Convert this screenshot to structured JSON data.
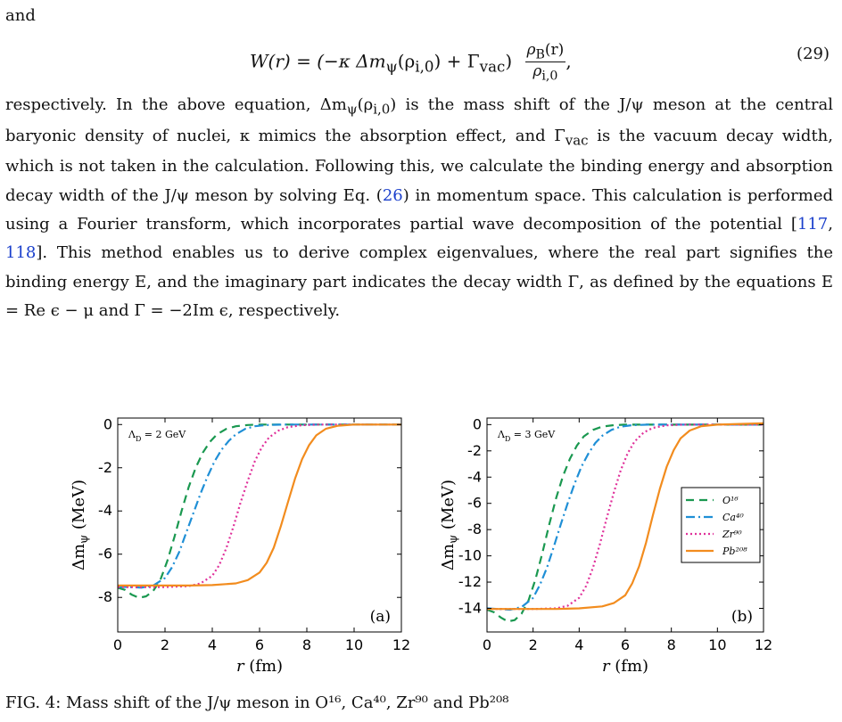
{
  "intro_word": "and",
  "equation": {
    "lhs": "W(r) = (−κ Δm",
    "lhs_sub": "ψ",
    "mid": "(ρ",
    "mid_sub": "i,0",
    "rest": ") + Γ",
    "rest_sub": "vac",
    "close": ")",
    "frac_num": "ρ",
    "frac_num_sub": "B",
    "frac_num_tail": "(r)",
    "frac_den": "ρ",
    "frac_den_sub": "i,0",
    "tail": ",",
    "number": "(29)"
  },
  "paragraph": {
    "s1": "respectively. In the above equation, Δm",
    "s1_sub": "ψ",
    "s2": "(ρ",
    "s2_sub": "i,0",
    "s3": ") is the mass shift of the J/ψ meson at the central baryonic density of nuclei, κ mimics the absorption effect, and Γ",
    "s3_sub": "vac",
    "s4": " is the vacuum decay width, which is not taken in the calculation. Following this, we calculate the binding energy and absorption decay width of the J/ψ meson by solving Eq. (",
    "ref_eq": "26",
    "s5": ") in momentum space. This calculation is performed using a Fourier transform, which incorporates partial wave decomposition of the potential [",
    "ref_a": "117",
    "s6": ", ",
    "ref_b": "118",
    "s7": "]. This method enables us to derive complex eigenvalues, where the real part signifies the binding energy E, and the imaginary part indicates the decay width Γ, as defined by the equations E = Re ϵ − μ and Γ = −2Im ϵ, respectively."
  },
  "caption_partial": "FIG. 4: Mass shift of the J/ψ meson in O¹⁶, Ca⁴⁰, Zr⁹⁰ and Pb²⁰⁸",
  "chart_data": [
    {
      "type": "line",
      "panel_label": "(a)",
      "annotation": "Λ_D = 2 GeV",
      "xlabel": "r (fm)",
      "ylabel": "Δm_ψ (MeV)",
      "xlim": [
        0,
        12
      ],
      "ylim": [
        -9.6,
        0.3
      ],
      "xticks": [
        0,
        2,
        4,
        6,
        8,
        10,
        12
      ],
      "yticks": [
        0,
        -2,
        -4,
        -6,
        -8
      ],
      "ytick_labels": [
        "0",
        "-2",
        "-4",
        "-6",
        "-8"
      ],
      "grid": false,
      "legend": "none",
      "series": [
        {
          "name": "O¹⁶",
          "color": "#1a9850",
          "dash": "9,6",
          "x": [
            0,
            0.3,
            0.6,
            0.9,
            1.2,
            1.5,
            1.8,
            2.1,
            2.4,
            2.7,
            3.0,
            3.3,
            3.6,
            3.9,
            4.2,
            4.6,
            5.0,
            5.5,
            6.0,
            7.0,
            8.0,
            10.0,
            12.0
          ],
          "y": [
            -7.55,
            -7.65,
            -7.88,
            -8.02,
            -7.95,
            -7.7,
            -7.2,
            -6.3,
            -5.2,
            -4.0,
            -2.9,
            -2.0,
            -1.3,
            -0.8,
            -0.45,
            -0.2,
            -0.08,
            -0.02,
            0.0,
            0.0,
            0.0,
            0.0,
            0.0
          ]
        },
        {
          "name": "Ca⁴⁰",
          "color": "#1f8fd6",
          "dash": "10,4,2,4",
          "x": [
            0,
            0.5,
            1.0,
            1.5,
            2.0,
            2.3,
            2.6,
            2.9,
            3.2,
            3.5,
            3.8,
            4.1,
            4.4,
            4.7,
            5.0,
            5.4,
            5.8,
            6.3,
            7.0,
            8.0,
            10.0,
            12.0
          ],
          "y": [
            -7.5,
            -7.52,
            -7.55,
            -7.45,
            -7.1,
            -6.6,
            -5.9,
            -5.0,
            -4.1,
            -3.2,
            -2.4,
            -1.7,
            -1.15,
            -0.75,
            -0.45,
            -0.2,
            -0.08,
            -0.02,
            0.0,
            0.0,
            0.0,
            0.0
          ]
        },
        {
          "name": "Zr⁹⁰",
          "color": "#e0309a",
          "dash": "2,3",
          "x": [
            0,
            1.0,
            2.0,
            3.0,
            3.5,
            4.0,
            4.3,
            4.6,
            4.9,
            5.2,
            5.5,
            5.8,
            6.1,
            6.4,
            6.8,
            7.2,
            7.8,
            8.5,
            10.0,
            12.0
          ],
          "y": [
            -7.52,
            -7.52,
            -7.52,
            -7.48,
            -7.35,
            -7.0,
            -6.5,
            -5.7,
            -4.7,
            -3.6,
            -2.6,
            -1.7,
            -1.05,
            -0.6,
            -0.28,
            -0.12,
            -0.03,
            0.0,
            0.0,
            0.0
          ]
        },
        {
          "name": "Pb²⁰⁸",
          "color": "#f28c1e",
          "dash": "",
          "x": [
            0,
            1.0,
            2.0,
            3.0,
            4.0,
            5.0,
            5.5,
            6.0,
            6.3,
            6.6,
            6.9,
            7.2,
            7.5,
            7.8,
            8.1,
            8.4,
            8.8,
            9.3,
            10.0,
            11.0,
            12.0
          ],
          "y": [
            -7.45,
            -7.45,
            -7.45,
            -7.45,
            -7.43,
            -7.35,
            -7.2,
            -6.85,
            -6.4,
            -5.7,
            -4.7,
            -3.6,
            -2.5,
            -1.6,
            -0.95,
            -0.5,
            -0.2,
            -0.06,
            0.0,
            0.0,
            0.0
          ]
        }
      ]
    },
    {
      "type": "line",
      "panel_label": "(b)",
      "annotation": "Λ_D = 3 GeV",
      "xlabel": "r (fm)",
      "ylabel": "Δm_ψ (MeV)",
      "xlim": [
        0,
        12
      ],
      "ylim": [
        -15.8,
        0.5
      ],
      "xticks": [
        0,
        2,
        4,
        6,
        8,
        10,
        12
      ],
      "yticks": [
        0,
        -2,
        -4,
        -6,
        -8,
        -10,
        -12,
        -14
      ],
      "ytick_labels": [
        "0",
        "-2",
        "-4",
        "-6",
        "-8",
        "-10",
        "-12",
        "-14"
      ],
      "grid": false,
      "legend": "right",
      "series": [
        {
          "name": "O¹⁶",
          "color": "#1a9850",
          "dash": "9,6",
          "x": [
            0,
            0.3,
            0.6,
            0.9,
            1.2,
            1.5,
            1.8,
            2.1,
            2.4,
            2.7,
            3.0,
            3.3,
            3.6,
            3.9,
            4.2,
            4.6,
            5.0,
            5.5,
            6.0,
            7.0,
            8.0,
            10.0,
            12.0
          ],
          "y": [
            -14.1,
            -14.3,
            -14.7,
            -15.0,
            -14.9,
            -14.4,
            -13.4,
            -11.8,
            -9.8,
            -7.6,
            -5.6,
            -3.9,
            -2.6,
            -1.6,
            -0.9,
            -0.4,
            -0.15,
            -0.04,
            0.0,
            0.0,
            0.0,
            0.0,
            0.0
          ]
        },
        {
          "name": "Ca⁴⁰",
          "color": "#1f8fd6",
          "dash": "10,4,2,4",
          "x": [
            0,
            0.5,
            1.0,
            1.5,
            2.0,
            2.3,
            2.6,
            2.9,
            3.2,
            3.5,
            3.8,
            4.1,
            4.4,
            4.7,
            5.0,
            5.4,
            5.8,
            6.3,
            7.0,
            8.0,
            10.0,
            12.0
          ],
          "y": [
            -14.0,
            -14.05,
            -14.1,
            -13.9,
            -13.2,
            -12.2,
            -10.9,
            -9.3,
            -7.6,
            -6.0,
            -4.5,
            -3.2,
            -2.2,
            -1.4,
            -0.85,
            -0.4,
            -0.15,
            -0.04,
            0.0,
            0.0,
            0.0,
            0.0
          ]
        },
        {
          "name": "Zr⁹⁰",
          "color": "#e0309a",
          "dash": "2,3",
          "x": [
            0,
            1.0,
            2.0,
            3.0,
            3.5,
            4.0,
            4.3,
            4.6,
            4.9,
            5.2,
            5.5,
            5.8,
            6.1,
            6.4,
            6.8,
            7.2,
            7.8,
            8.5,
            10.0,
            12.0
          ],
          "y": [
            -14.05,
            -14.05,
            -14.05,
            -14.0,
            -13.8,
            -13.2,
            -12.3,
            -10.9,
            -9.1,
            -7.1,
            -5.2,
            -3.5,
            -2.2,
            -1.3,
            -0.6,
            -0.25,
            -0.06,
            0.0,
            0.0,
            0.0
          ]
        },
        {
          "name": "Pb²⁰⁸",
          "color": "#f28c1e",
          "dash": "",
          "x": [
            0,
            1.0,
            2.0,
            3.0,
            4.0,
            5.0,
            5.5,
            6.0,
            6.3,
            6.6,
            6.9,
            7.2,
            7.5,
            7.8,
            8.1,
            8.4,
            8.8,
            9.3,
            10.0,
            11.0,
            12.0
          ],
          "y": [
            -14.05,
            -14.05,
            -14.05,
            -14.05,
            -14.0,
            -13.85,
            -13.6,
            -13.0,
            -12.1,
            -10.8,
            -9.0,
            -6.9,
            -4.9,
            -3.2,
            -1.95,
            -1.05,
            -0.45,
            -0.12,
            0.0,
            0.05,
            0.1
          ]
        }
      ]
    }
  ]
}
